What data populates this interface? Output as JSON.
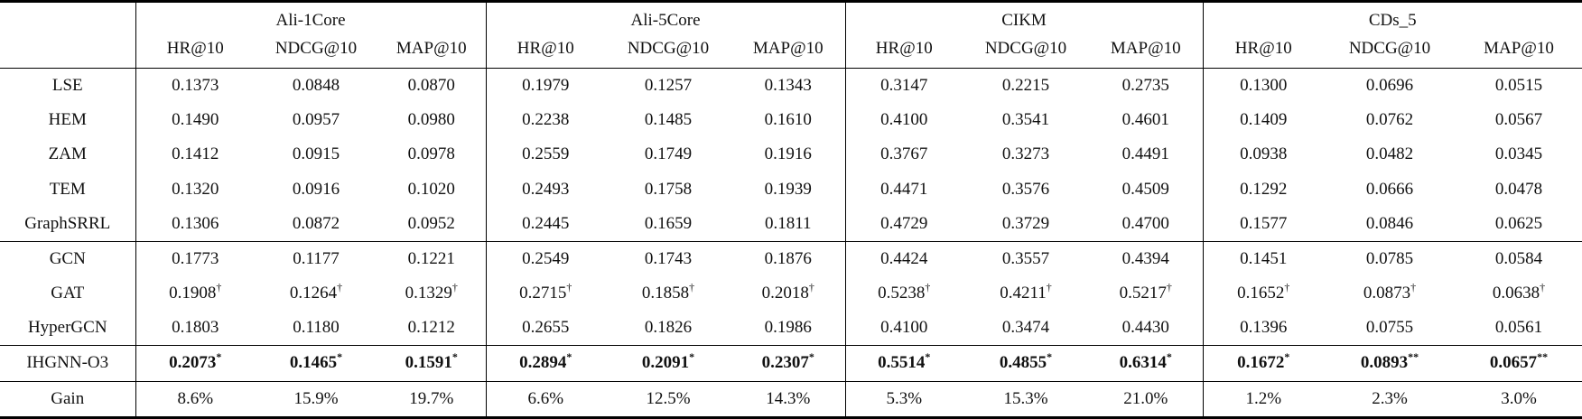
{
  "colors": {
    "background": "#ffffff",
    "text": "#111111",
    "rule": "#000000"
  },
  "table": {
    "corner_label": "",
    "metrics_per_group": [
      "HR@10",
      "NDCG@10",
      "MAP@10"
    ],
    "groups": [
      {
        "name": "Ali-1Core"
      },
      {
        "name": "Ali-5Core"
      },
      {
        "name": "CIKM"
      },
      {
        "name": "CDs_5"
      }
    ],
    "sections": [
      {
        "name": "baselines",
        "rows": [
          {
            "label": "LSE",
            "values": [
              "0.1373",
              "0.0848",
              "0.0870",
              "0.1979",
              "0.1257",
              "0.1343",
              "0.3147",
              "0.2215",
              "0.2735",
              "0.1300",
              "0.0696",
              "0.0515"
            ]
          },
          {
            "label": "HEM",
            "values": [
              "0.1490",
              "0.0957",
              "0.0980",
              "0.2238",
              "0.1485",
              "0.1610",
              "0.4100",
              "0.3541",
              "0.4601",
              "0.1409",
              "0.0762",
              "0.0567"
            ]
          },
          {
            "label": "ZAM",
            "values": [
              "0.1412",
              "0.0915",
              "0.0978",
              "0.2559",
              "0.1749",
              "0.1916",
              "0.3767",
              "0.3273",
              "0.4491",
              "0.0938",
              "0.0482",
              "0.0345"
            ]
          },
          {
            "label": "TEM",
            "values": [
              "0.1320",
              "0.0916",
              "0.1020",
              "0.2493",
              "0.1758",
              "0.1939",
              "0.4471",
              "0.3576",
              "0.4509",
              "0.1292",
              "0.0666",
              "0.0478"
            ]
          },
          {
            "label": "GraphSRRL",
            "values": [
              "0.1306",
              "0.0872",
              "0.0952",
              "0.2445",
              "0.1659",
              "0.1811",
              "0.4729",
              "0.3729",
              "0.4700",
              "0.1577",
              "0.0846",
              "0.0625"
            ]
          }
        ]
      },
      {
        "name": "graph-baselines",
        "rows": [
          {
            "label": "GCN",
            "values": [
              "0.1773",
              "0.1177",
              "0.1221",
              "0.2549",
              "0.1743",
              "0.1876",
              "0.4424",
              "0.3557",
              "0.4394",
              "0.1451",
              "0.0785",
              "0.0584"
            ]
          },
          {
            "label": "GAT",
            "values": [
              "0.1908",
              "0.1264",
              "0.1329",
              "0.2715",
              "0.1858",
              "0.2018",
              "0.5238",
              "0.4211",
              "0.5217",
              "0.1652",
              "0.0873",
              "0.0638"
            ],
            "sups": [
              "†",
              "†",
              "†",
              "†",
              "†",
              "†",
              "†",
              "†",
              "†",
              "†",
              "†",
              "†"
            ]
          },
          {
            "label": "HyperGCN",
            "values": [
              "0.1803",
              "0.1180",
              "0.1212",
              "0.2655",
              "0.1826",
              "0.1986",
              "0.4100",
              "0.3474",
              "0.4430",
              "0.1396",
              "0.0755",
              "0.0561"
            ]
          }
        ]
      },
      {
        "name": "proposed",
        "rows": [
          {
            "label": "IHGNN-O3",
            "bold": true,
            "values": [
              "0.2073",
              "0.1465",
              "0.1591",
              "0.2894",
              "0.2091",
              "0.2307",
              "0.5514",
              "0.4855",
              "0.6314",
              "0.1672",
              "0.0893",
              "0.0657"
            ],
            "sups": [
              "*",
              "*",
              "*",
              "*",
              "*",
              "*",
              "*",
              "*",
              "*",
              "*",
              "**",
              "**"
            ]
          }
        ]
      },
      {
        "name": "gain",
        "rows": [
          {
            "label": "Gain",
            "values": [
              "8.6%",
              "15.9%",
              "19.7%",
              "6.6%",
              "12.5%",
              "14.3%",
              "5.3%",
              "15.3%",
              "21.0%",
              "1.2%",
              "2.3%",
              "3.0%"
            ]
          }
        ]
      }
    ]
  }
}
